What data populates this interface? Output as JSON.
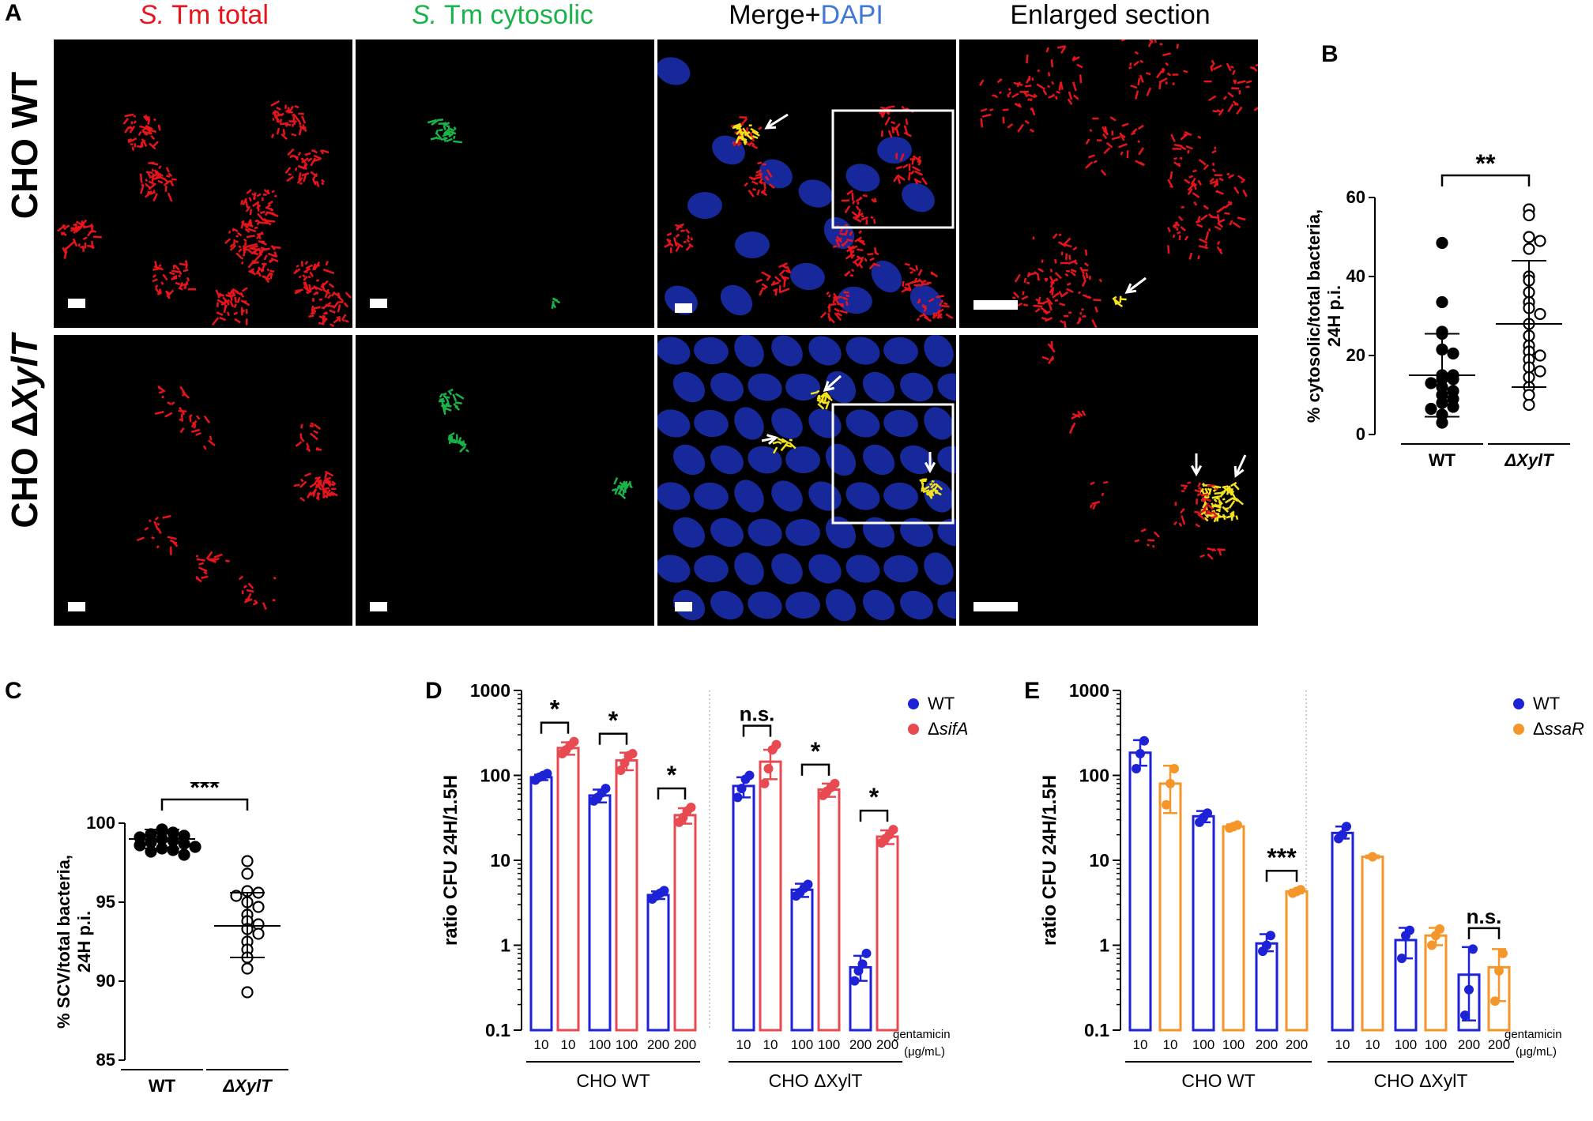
{
  "panel_letters": {
    "a": "A",
    "b": "B",
    "c": "C",
    "d": "D",
    "e": "E"
  },
  "micrographs": {
    "col_headers": {
      "total_italic": "S.",
      "total_rest": " Tm total",
      "cyto_italic": "S.",
      "cyto_rest": " Tm cytosolic",
      "merge": "Merge+",
      "dapi": "DAPI",
      "enlarged": "Enlarged section"
    },
    "row_labels": {
      "wt": "CHO WT",
      "ko_prefix": "CHO Δ",
      "ko_italic": "XylT"
    },
    "colors": {
      "total": "#e8141c",
      "cytosolic": "#1ab34a",
      "dapi": "#3f78d8",
      "header": "#000000"
    }
  },
  "chart_data": [
    {
      "panel": "B",
      "type": "scatter",
      "ylabel": "% cytosolic/total bacteria,",
      "ylabel2": "24H p.i.",
      "ylim": [
        0,
        60
      ],
      "yticks": [
        0,
        20,
        40,
        60
      ],
      "categories": [
        "WT",
        "ΔXylT"
      ],
      "significance": "**",
      "series": [
        {
          "values": [
            48.5,
            33.5,
            26,
            25.5,
            21.5,
            20.5,
            15,
            15,
            14,
            14,
            13,
            12,
            11,
            10,
            9,
            8,
            7,
            6.5,
            5,
            3
          ],
          "mean": 15,
          "sd": [
            4.5,
            25.5
          ],
          "fill": "#000000"
        },
        {
          "values": [
            57,
            55.5,
            50,
            49,
            47,
            40,
            39,
            36,
            33.5,
            32,
            30.5,
            28,
            25,
            22.5,
            21,
            20,
            19,
            17,
            16,
            14.5,
            12,
            10,
            7.5
          ],
          "mean": 28,
          "sd": [
            12,
            44
          ],
          "fill": "#ffffff"
        }
      ]
    },
    {
      "panel": "C",
      "type": "scatter",
      "ylabel": "% SCV/total bacteria,",
      "ylabel2": "24H p.i.",
      "ylim": [
        85,
        100
      ],
      "yticks": [
        85,
        90,
        95,
        100
      ],
      "categories": [
        "WT",
        "ΔXylT"
      ],
      "significance": "***",
      "series": [
        {
          "values": [
            99.6,
            99.5,
            99.4,
            99.3,
            99.2,
            99.1,
            99,
            98.9,
            98.8,
            98.7,
            98.6,
            98.5,
            98.4,
            98.3,
            98.2,
            98
          ],
          "mean": 99,
          "sd": [
            98.4,
            99.6
          ],
          "fill": "#000000"
        },
        {
          "values": [
            97.6,
            96.8,
            95.7,
            95.6,
            95.4,
            95,
            94.7,
            94.2,
            93.8,
            93.6,
            93.3,
            93,
            92.5,
            92,
            91.5,
            90.8,
            89.3
          ],
          "mean": 93.5,
          "sd": [
            91.5,
            95.6
          ],
          "fill": "#ffffff"
        }
      ]
    },
    {
      "panel": "D",
      "type": "bar",
      "ylabel": "ratio CFU 24H/1.5H",
      "yscale": "log",
      "ylim": [
        0.1,
        1000
      ],
      "yticks": [
        "0.1",
        "1",
        "10",
        "100",
        "1000"
      ],
      "legend": "top-right",
      "legend_prefix": "Δ",
      "legend_labels": [
        "WT",
        "sifA"
      ],
      "conc_label": "gentamicin",
      "conc_unit": "(μg/mL)",
      "group_labels": [
        "CHO WT",
        "CHO ΔXylT"
      ],
      "colors": [
        "#1e22d6",
        "#e84a52"
      ],
      "bars": [
        {
          "group": 0,
          "conc": "10",
          "series": 0,
          "value": 95,
          "err": [
            88,
            102
          ],
          "points": [
            88,
            95,
            100,
            105
          ]
        },
        {
          "group": 0,
          "conc": "10",
          "series": 1,
          "value": 210,
          "err": [
            175,
            245
          ],
          "points": [
            180,
            200,
            225,
            250
          ]
        },
        {
          "group": 0,
          "conc": "100",
          "series": 0,
          "value": 58,
          "err": [
            48,
            68
          ],
          "points": [
            50,
            55,
            62,
            70
          ]
        },
        {
          "group": 0,
          "conc": "100",
          "series": 1,
          "value": 150,
          "err": [
            115,
            185
          ],
          "points": [
            115,
            140,
            170,
            180
          ]
        },
        {
          "group": 0,
          "conc": "200",
          "series": 0,
          "value": 3.9,
          "err": [
            3.5,
            4.3
          ],
          "points": [
            3.5,
            3.8,
            4.1,
            4.4
          ]
        },
        {
          "group": 0,
          "conc": "200",
          "series": 1,
          "value": 34,
          "err": [
            27,
            41
          ],
          "points": [
            28,
            32,
            38,
            42
          ]
        },
        {
          "group": 1,
          "conc": "10",
          "series": 0,
          "value": 75,
          "err": [
            55,
            95
          ],
          "points": [
            55,
            70,
            90,
            100
          ]
        },
        {
          "group": 1,
          "conc": "10",
          "series": 1,
          "value": 145,
          "err": [
            90,
            200
          ],
          "points": [
            80,
            120,
            200,
            230
          ]
        },
        {
          "group": 1,
          "conc": "100",
          "series": 0,
          "value": 4.5,
          "err": [
            3.7,
            5.3
          ],
          "points": [
            3.8,
            4.2,
            4.7,
            5.2
          ]
        },
        {
          "group": 1,
          "conc": "100",
          "series": 1,
          "value": 68,
          "err": [
            56,
            80
          ],
          "points": [
            58,
            65,
            72,
            80
          ]
        },
        {
          "group": 1,
          "conc": "200",
          "series": 0,
          "value": 0.55,
          "err": [
            0.38,
            0.75
          ],
          "points": [
            0.38,
            0.5,
            0.6,
            0.8
          ]
        },
        {
          "group": 1,
          "conc": "200",
          "series": 1,
          "value": 19,
          "err": [
            15.5,
            22.5
          ],
          "points": [
            16,
            18,
            20,
            23
          ]
        }
      ],
      "brackets": [
        {
          "group": 0,
          "conc": "10",
          "label": "*"
        },
        {
          "group": 0,
          "conc": "100",
          "label": "*"
        },
        {
          "group": 0,
          "conc": "200",
          "label": "*"
        },
        {
          "group": 1,
          "conc": "10",
          "label": "n.s."
        },
        {
          "group": 1,
          "conc": "100",
          "label": "*"
        },
        {
          "group": 1,
          "conc": "200",
          "label": "*"
        }
      ]
    },
    {
      "panel": "E",
      "type": "bar",
      "ylabel": "ratio CFU 24H/1.5H",
      "yscale": "log",
      "ylim": [
        0.1,
        1000
      ],
      "yticks": [
        "0.1",
        "1",
        "10",
        "100",
        "1000"
      ],
      "legend": "top-right",
      "legend_prefix": "Δ",
      "legend_labels": [
        "WT",
        "ssaR"
      ],
      "conc_label": "gentamicin",
      "conc_unit": "(μg/mL)",
      "group_labels": [
        "CHO WT",
        "CHO ΔXylT"
      ],
      "colors": [
        "#1e22d6",
        "#f5962a"
      ],
      "bars": [
        {
          "group": 0,
          "conc": "10",
          "series": 0,
          "value": 185,
          "err": [
            130,
            260
          ],
          "points": [
            120,
            180,
            255
          ]
        },
        {
          "group": 0,
          "conc": "10",
          "series": 1,
          "value": 80,
          "err": [
            36,
            130
          ],
          "points": [
            45,
            80,
            120
          ]
        },
        {
          "group": 0,
          "conc": "100",
          "series": 0,
          "value": 33,
          "err": [
            28,
            38
          ],
          "points": [
            28,
            32,
            36
          ]
        },
        {
          "group": 0,
          "conc": "100",
          "series": 1,
          "value": 25,
          "err": [
            24,
            26.5
          ],
          "points": [
            24,
            25,
            26
          ]
        },
        {
          "group": 0,
          "conc": "200",
          "series": 0,
          "value": 1.05,
          "err": [
            0.85,
            1.35
          ],
          "points": [
            0.85,
            1.0,
            1.3
          ]
        },
        {
          "group": 0,
          "conc": "200",
          "series": 1,
          "value": 4.3,
          "err": [
            4.1,
            4.5
          ],
          "points": [
            4.1,
            4.3,
            4.5
          ]
        },
        {
          "group": 1,
          "conc": "10",
          "series": 0,
          "value": 21,
          "err": [
            18,
            25
          ],
          "points": [
            18,
            20,
            25
          ]
        },
        {
          "group": 1,
          "conc": "10",
          "series": 1,
          "value": 11,
          "err": [
            10.6,
            11.4
          ],
          "points": [
            11
          ]
        },
        {
          "group": 1,
          "conc": "100",
          "series": 0,
          "value": 1.15,
          "err": [
            0.7,
            1.6
          ],
          "points": [
            0.7,
            1.3,
            1.5
          ]
        },
        {
          "group": 1,
          "conc": "100",
          "series": 1,
          "value": 1.3,
          "err": [
            1.0,
            1.6
          ],
          "points": [
            1.0,
            1.3,
            1.55
          ]
        },
        {
          "group": 1,
          "conc": "200",
          "series": 0,
          "value": 0.45,
          "err": [
            0.13,
            0.95
          ],
          "points": [
            0.15,
            0.3,
            0.9
          ]
        },
        {
          "group": 1,
          "conc": "200",
          "series": 1,
          "value": 0.55,
          "err": [
            0.22,
            0.9
          ],
          "points": [
            0.22,
            0.5,
            0.8
          ]
        }
      ],
      "brackets": [
        {
          "group": 0,
          "conc": "200",
          "label": "***"
        },
        {
          "group": 1,
          "conc": "200",
          "label": "n.s."
        }
      ]
    }
  ]
}
